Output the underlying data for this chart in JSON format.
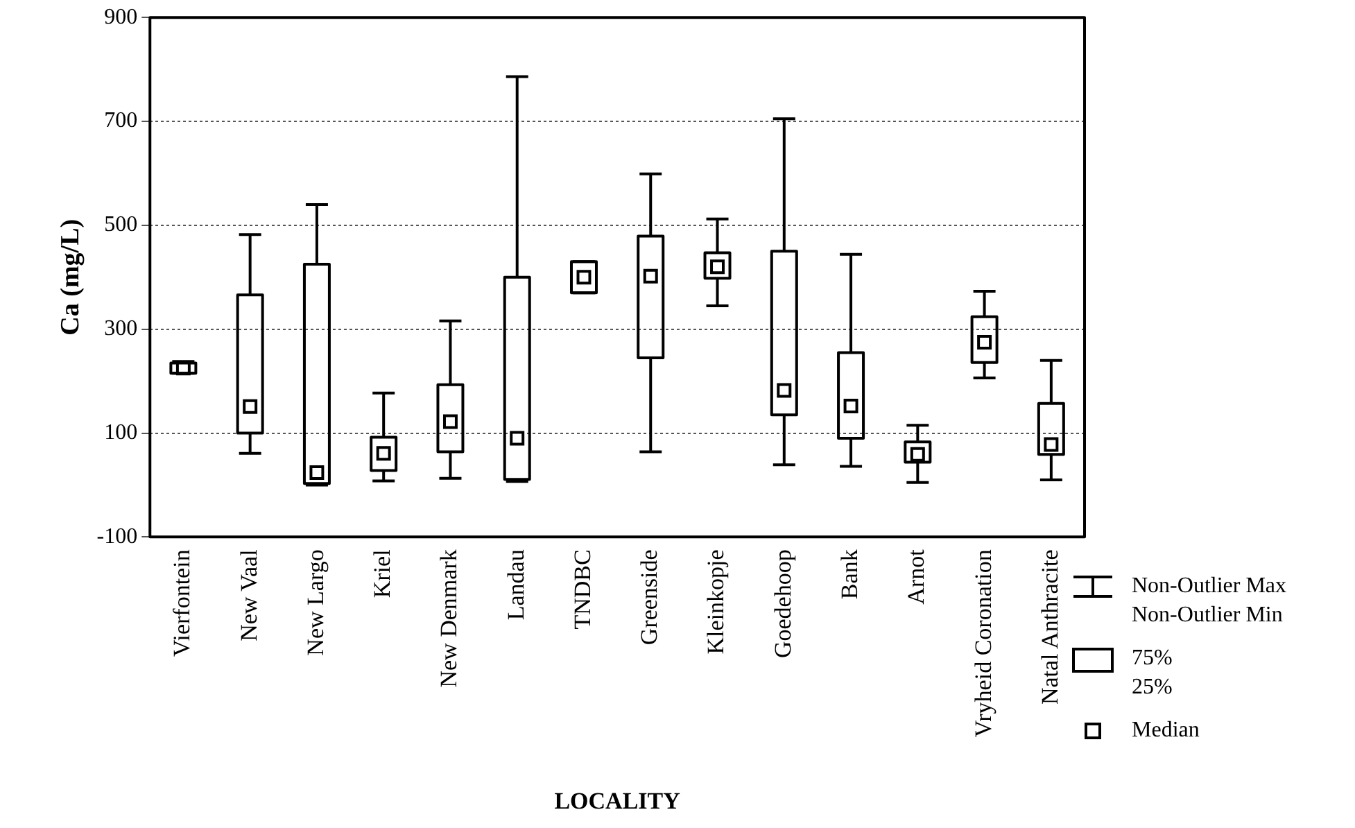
{
  "chart_data": {
    "type": "box",
    "xlabel": "LOCALITY",
    "ylabel": "Ca (mg/L)",
    "categories": [
      "Vierfontein",
      "New Vaal",
      "New Largo",
      "Kriel",
      "New Denmark",
      "Landau",
      "TNDBC",
      "Greenside",
      "Kleinkopje",
      "Goedehoop",
      "Bank",
      "Arnot",
      "Vryheid Coronation",
      "Natal Anthracite"
    ],
    "boxes": [
      {
        "low": 215,
        "q1": 215,
        "median": 225,
        "q3": 235,
        "high": 238
      },
      {
        "low": 61,
        "q1": 100,
        "median": 151,
        "q3": 366,
        "high": 482
      },
      {
        "low": 0,
        "q1": 3,
        "median": 24,
        "q3": 425,
        "high": 540
      },
      {
        "low": 8,
        "q1": 28,
        "median": 61,
        "q3": 92,
        "high": 177
      },
      {
        "low": 13,
        "q1": 64,
        "median": 122,
        "q3": 193,
        "high": 316
      },
      {
        "low": 7,
        "q1": 11,
        "median": 90,
        "q3": 400,
        "high": 786
      },
      {
        "low": 370,
        "q1": 370,
        "median": 400,
        "q3": 430,
        "high": 430
      },
      {
        "low": 64,
        "q1": 245,
        "median": 402,
        "q3": 479,
        "high": 599
      },
      {
        "low": 345,
        "q1": 398,
        "median": 420,
        "q3": 447,
        "high": 512
      },
      {
        "low": 39,
        "q1": 135,
        "median": 182,
        "q3": 450,
        "high": 705
      },
      {
        "low": 36,
        "q1": 90,
        "median": 152,
        "q3": 255,
        "high": 444
      },
      {
        "low": 5,
        "q1": 44,
        "median": 59,
        "q3": 83,
        "high": 115
      },
      {
        "low": 206,
        "q1": 236,
        "median": 275,
        "q3": 324,
        "high": 373
      },
      {
        "low": 10,
        "q1": 59,
        "median": 78,
        "q3": 157,
        "high": 240
      }
    ],
    "ylim": [
      -100,
      900
    ],
    "yticks": [
      -100,
      100,
      300,
      500,
      700,
      900
    ],
    "grid": "y",
    "marker": "square",
    "annotations": [
      "Non-Outlier Max",
      "Non-Outlier Min",
      "75%",
      "25%",
      "Median"
    ]
  }
}
